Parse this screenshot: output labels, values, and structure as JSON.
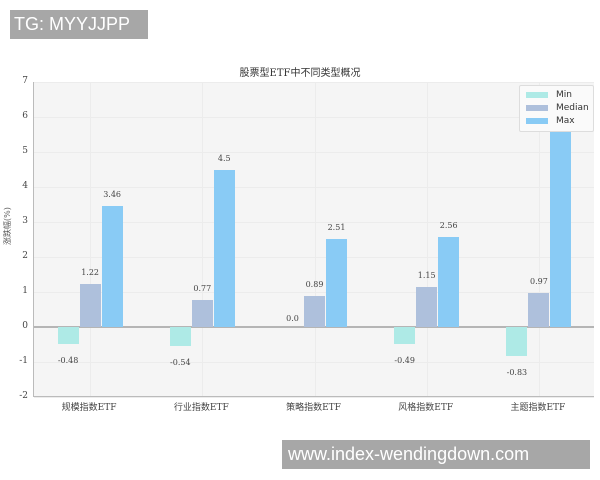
{
  "watermarks": {
    "top": "TG: MYYJJPP",
    "bottom": "www.index-wendingdown.com"
  },
  "chart_data": {
    "type": "bar",
    "title": "股票型ETF中不同类型概况",
    "xlabel": "",
    "ylabel": "涨跌幅(%)",
    "ylim": [
      -2,
      7
    ],
    "yticks": [
      "7",
      "6",
      "5",
      "4",
      "3",
      "2",
      "1",
      "0",
      "-1",
      "-2"
    ],
    "grid": true,
    "legend_position": "upper right",
    "categories": [
      "规模指数ETF",
      "行业指数ETF",
      "策略指数ETF",
      "风格指数ETF",
      "主题指数ETF"
    ],
    "series": [
      {
        "name": "Min",
        "color": "#aeeae6",
        "values": [
          -0.48,
          -0.54,
          0.0,
          -0.49,
          -0.83
        ],
        "labels": [
          "-0.48",
          "-0.54",
          "0.0",
          "-0.49",
          "-0.83"
        ]
      },
      {
        "name": "Median",
        "color": "#aec0dc",
        "values": [
          1.22,
          0.77,
          0.89,
          1.15,
          0.97
        ],
        "labels": [
          "1.22",
          "0.77",
          "0.89",
          "1.15",
          "0.97"
        ]
      },
      {
        "name": "Max",
        "color": "#89cbf5",
        "values": [
          3.46,
          4.5,
          2.51,
          2.56,
          6.5
        ],
        "labels": [
          "3.46",
          "4.5",
          "2.51",
          "2.56",
          ""
        ]
      }
    ]
  }
}
